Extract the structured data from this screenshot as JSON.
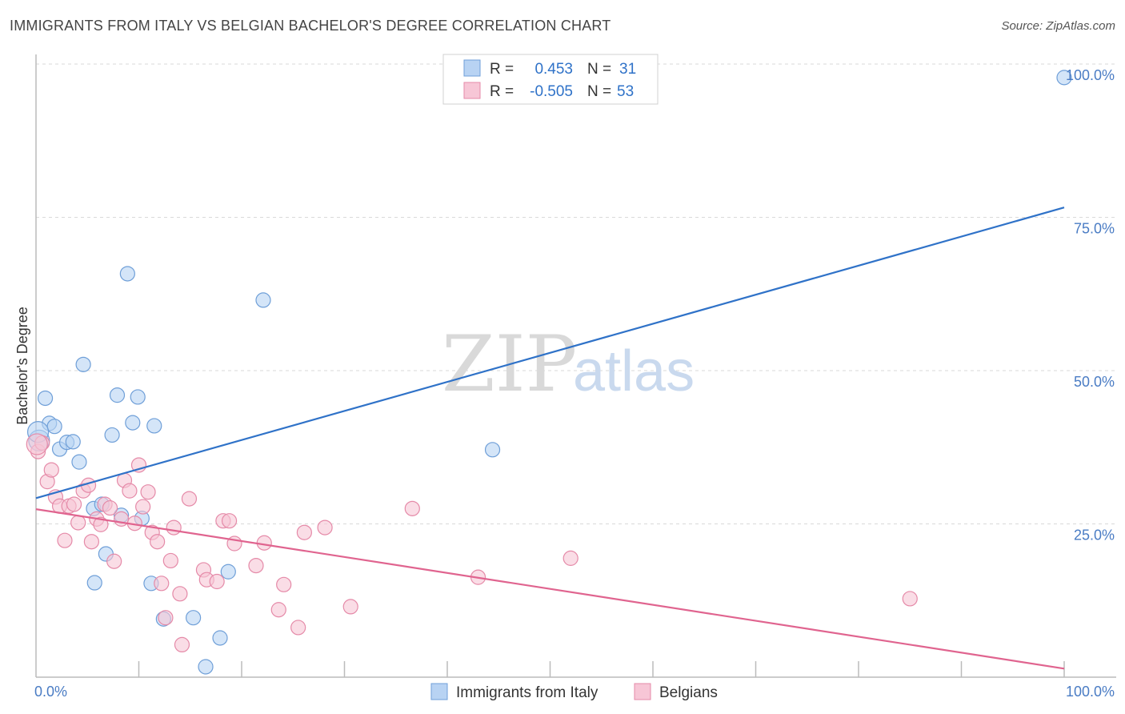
{
  "title": "IMMIGRANTS FROM ITALY VS BELGIAN BACHELOR'S DEGREE CORRELATION CHART",
  "source": "Source: ZipAtlas.com",
  "watermark": {
    "zip": "ZIP",
    "atlas": "atlas"
  },
  "colors": {
    "italy_fill": "#b8d3f3",
    "italy_stroke": "#6f9fd8",
    "italy_line": "#2f72c8",
    "belg_fill": "#f7c6d6",
    "belg_stroke": "#e58aa8",
    "belg_line": "#e0648f",
    "grid": "#d9d9d9",
    "axis_label": "#4a7cc4"
  },
  "legend": {
    "rows": [
      {
        "r_label": "R =",
        "r_value": "0.453",
        "n_label": "N =",
        "n_value": "31",
        "series": "italy"
      },
      {
        "r_label": "R =",
        "r_value": "-0.505",
        "n_label": "N =",
        "n_value": "53",
        "series": "belg"
      }
    ]
  },
  "chart_data": {
    "type": "scatter",
    "xlabel": "",
    "ylabel": "Bachelor's Degree",
    "xlim": [
      0,
      100
    ],
    "ylim": [
      0,
      100
    ],
    "x_tick_labels": [
      "0.0%",
      "100.0%"
    ],
    "y_ticks": [
      25,
      50,
      75,
      100
    ],
    "y_tick_labels": [
      "25.0%",
      "50.0%",
      "75.0%",
      "100.0%"
    ],
    "grid": true,
    "series": [
      {
        "name": "Immigrants from Italy",
        "key": "italy",
        "trend": {
          "x": [
            0,
            100
          ],
          "y": [
            29.2,
            76.6
          ]
        },
        "points": [
          [
            0.3,
            38.6
          ],
          [
            0.9,
            45.5
          ],
          [
            1.3,
            41.4
          ],
          [
            1.8,
            40.9
          ],
          [
            2.3,
            37.2
          ],
          [
            3.0,
            38.3
          ],
          [
            3.6,
            38.4
          ],
          [
            4.2,
            35.1
          ],
          [
            4.6,
            51.0
          ],
          [
            5.6,
            27.5
          ],
          [
            5.7,
            15.4
          ],
          [
            6.4,
            28.2
          ],
          [
            6.8,
            20.1
          ],
          [
            7.4,
            39.5
          ],
          [
            7.9,
            46.0
          ],
          [
            8.3,
            26.4
          ],
          [
            8.9,
            65.8
          ],
          [
            9.4,
            41.5
          ],
          [
            9.9,
            45.7
          ],
          [
            10.3,
            25.9
          ],
          [
            11.2,
            15.3
          ],
          [
            11.5,
            41.0
          ],
          [
            12.4,
            9.5
          ],
          [
            15.3,
            9.7
          ],
          [
            17.9,
            6.4
          ],
          [
            18.7,
            17.2
          ],
          [
            22.1,
            61.5
          ],
          [
            44.4,
            37.1
          ],
          [
            100.0,
            97.8
          ],
          [
            16.5,
            1.7
          ],
          [
            0.2,
            40.0
          ]
        ]
      },
      {
        "name": "Belgians",
        "key": "belg",
        "trend": {
          "x": [
            0,
            100
          ],
          "y": [
            27.4,
            1.4
          ]
        },
        "points": [
          [
            0.2,
            36.8
          ],
          [
            0.6,
            38.2
          ],
          [
            1.1,
            31.9
          ],
          [
            1.5,
            33.8
          ],
          [
            1.9,
            29.4
          ],
          [
            2.3,
            27.9
          ],
          [
            2.8,
            22.3
          ],
          [
            3.2,
            27.9
          ],
          [
            3.7,
            28.2
          ],
          [
            4.1,
            25.2
          ],
          [
            4.6,
            30.4
          ],
          [
            5.1,
            31.3
          ],
          [
            5.4,
            22.1
          ],
          [
            5.9,
            25.8
          ],
          [
            6.3,
            24.9
          ],
          [
            6.7,
            28.2
          ],
          [
            7.2,
            27.6
          ],
          [
            7.6,
            18.9
          ],
          [
            8.3,
            25.8
          ],
          [
            8.6,
            32.1
          ],
          [
            9.1,
            30.4
          ],
          [
            9.6,
            25.1
          ],
          [
            10.0,
            34.6
          ],
          [
            10.4,
            27.8
          ],
          [
            10.9,
            30.2
          ],
          [
            11.3,
            23.6
          ],
          [
            11.8,
            22.1
          ],
          [
            12.2,
            15.3
          ],
          [
            12.6,
            9.7
          ],
          [
            13.1,
            19.0
          ],
          [
            13.4,
            24.4
          ],
          [
            14.0,
            13.6
          ],
          [
            14.2,
            5.3
          ],
          [
            14.9,
            29.1
          ],
          [
            16.3,
            17.5
          ],
          [
            16.6,
            15.9
          ],
          [
            17.6,
            15.6
          ],
          [
            18.2,
            25.5
          ],
          [
            18.8,
            25.5
          ],
          [
            19.3,
            21.8
          ],
          [
            21.4,
            18.2
          ],
          [
            22.2,
            21.9
          ],
          [
            23.6,
            11.0
          ],
          [
            24.1,
            15.1
          ],
          [
            25.5,
            8.1
          ],
          [
            26.1,
            23.6
          ],
          [
            28.1,
            24.4
          ],
          [
            30.6,
            11.5
          ],
          [
            36.6,
            27.5
          ],
          [
            43.0,
            16.3
          ],
          [
            52.0,
            19.4
          ],
          [
            85.0,
            12.8
          ],
          [
            0.1,
            38.0
          ]
        ]
      }
    ]
  },
  "bottom_legend": {
    "items": [
      {
        "label": "Immigrants from Italy",
        "series": "italy"
      },
      {
        "label": "Belgians",
        "series": "belg"
      }
    ]
  }
}
